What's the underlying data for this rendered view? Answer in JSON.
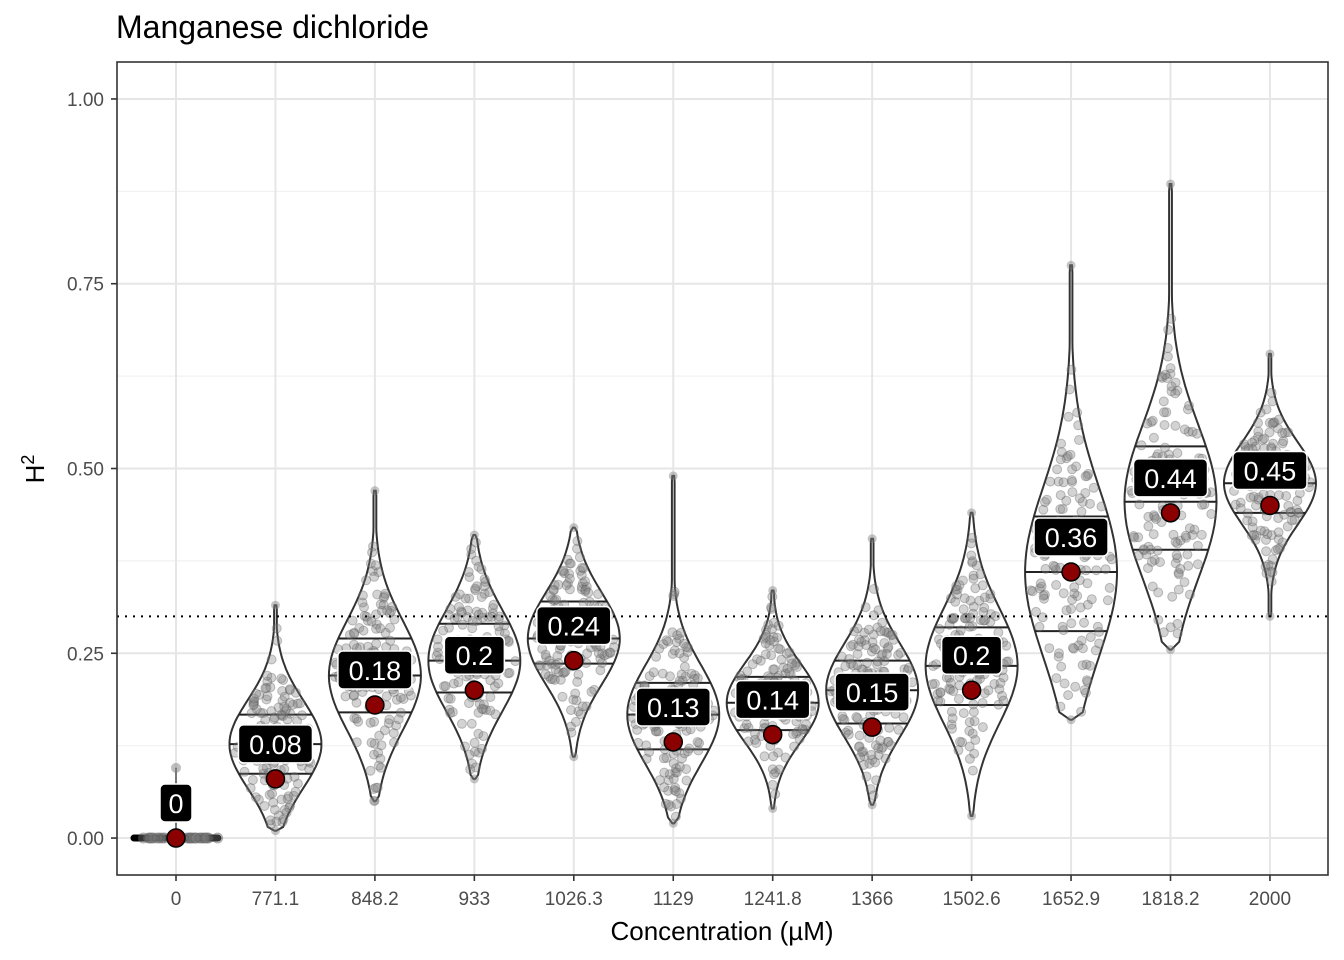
{
  "chart_data": {
    "type": "violin",
    "title": "Manganese dichloride",
    "xlabel": "Concentration (µM)",
    "ylabel": "H",
    "ylabel_superscript": "2",
    "ylim": [
      -0.05,
      1.05
    ],
    "yticks": [
      "0.00",
      "0.25",
      "0.50",
      "0.75",
      "1.00"
    ],
    "ytick_values": [
      0,
      0.25,
      0.5,
      0.75,
      1.0
    ],
    "threshold": 0.3,
    "grid": true,
    "colors": {
      "point": "#8b0000",
      "jitter": "#808080",
      "violin_stroke": "#333333",
      "label_bg": "#000000",
      "label_text": "#ffffff"
    },
    "categories": [
      "0",
      "771.1",
      "848.2",
      "933",
      "1026.3",
      "1129",
      "1241.8",
      "1366",
      "1502.6",
      "1652.9",
      "1818.2",
      "2000"
    ],
    "means": [
      0,
      0.08,
      0.18,
      0.2,
      0.24,
      0.13,
      0.14,
      0.15,
      0.2,
      0.36,
      0.44,
      0.45
    ],
    "labels": [
      "0",
      "0.08",
      "0.18",
      "0.2",
      "0.24",
      "0.13",
      "0.14",
      "0.15",
      "0.2",
      "0.36",
      "0.44",
      "0.45"
    ],
    "quantiles": [
      [
        0,
        0,
        0
      ],
      [
        0.087,
        0.127,
        0.167
      ],
      [
        0.17,
        0.22,
        0.27
      ],
      [
        0.197,
        0.24,
        0.29
      ],
      [
        0.236,
        0.27,
        0.32
      ],
      [
        0.12,
        0.167,
        0.21
      ],
      [
        0.146,
        0.183,
        0.218
      ],
      [
        0.155,
        0.2,
        0.24
      ],
      [
        0.18,
        0.233,
        0.285
      ],
      [
        0.28,
        0.36,
        0.435
      ],
      [
        0.39,
        0.455,
        0.53
      ],
      [
        0.44,
        0.48,
        0.515
      ]
    ],
    "ranges": [
      [
        0,
        0.095
      ],
      [
        0.01,
        0.315
      ],
      [
        0.05,
        0.47
      ],
      [
        0.08,
        0.41
      ],
      [
        0.11,
        0.42
      ],
      [
        0.02,
        0.49
      ],
      [
        0.04,
        0.335
      ],
      [
        0.045,
        0.405
      ],
      [
        0.03,
        0.44
      ],
      [
        0.16,
        0.775
      ],
      [
        0.255,
        0.885
      ],
      [
        0.3,
        0.655
      ]
    ]
  }
}
